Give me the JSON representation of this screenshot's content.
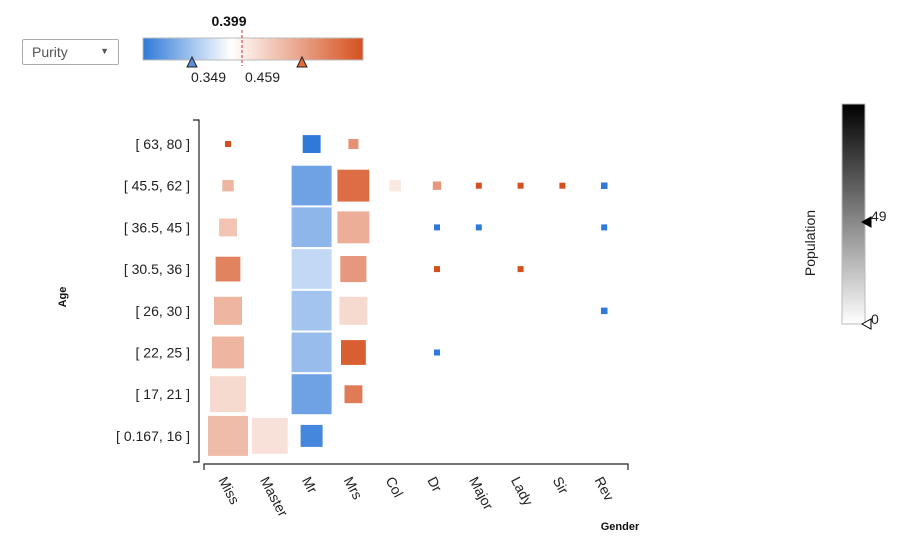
{
  "controls": {
    "metric_selected": "Purity",
    "dropdown_arrow_glyph": "▼"
  },
  "colors": {
    "low": "#2f7ad8",
    "mid": "#ffffff",
    "high": "#d6501f",
    "population_min": "#ffffff",
    "population_max": "#000000"
  },
  "purity_scale": {
    "current": "0.399",
    "low_marker": "0.349",
    "high_marker": "0.459",
    "min": 0.3,
    "max": 0.52,
    "current_value": 0.399,
    "low_value": 0.349,
    "high_value": 0.459
  },
  "population_scale": {
    "label": "Population",
    "max_label": "49",
    "min_label": "0",
    "max_value": 49,
    "min_value": 0
  },
  "chart_data": {
    "type": "heatmap",
    "xlabel": "Gender",
    "ylabel": "Age",
    "x_categories": [
      "Miss",
      "Master",
      "Mr",
      "Mrs",
      "Col",
      "Dr",
      "Major",
      "Lady",
      "Sir",
      "Rev"
    ],
    "y_categories": [
      "[ 63, 80 ]",
      "[ 45.5, 62 ]",
      "[ 36.5, 45 ]",
      "[ 30.5, 36 ]",
      "[ 26, 30 ]",
      "[ 22, 25 ]",
      "[ 17, 21 ]",
      "[ 0.167, 16 ]"
    ],
    "size_encodes": "Population",
    "color_encodes": "Purity",
    "cells": [
      {
        "x": "Miss",
        "y": "[ 63, 80 ]",
        "population": 1,
        "purity": 0.52
      },
      {
        "x": "Mr",
        "y": "[ 63, 80 ]",
        "population": 11,
        "purity": 0.3
      },
      {
        "x": "Mrs",
        "y": "[ 63, 80 ]",
        "population": 4,
        "purity": 0.475
      },
      {
        "x": "Miss",
        "y": "[ 45.5, 62 ]",
        "population": 5,
        "purity": 0.45
      },
      {
        "x": "Mr",
        "y": "[ 45.5, 62 ]",
        "population": 49,
        "purity": 0.33
      },
      {
        "x": "Mrs",
        "y": "[ 45.5, 62 ]",
        "population": 32,
        "purity": 0.5
      },
      {
        "x": "Col",
        "y": "[ 45.5, 62 ]",
        "population": 5,
        "purity": 0.415
      },
      {
        "x": "Dr",
        "y": "[ 45.5, 62 ]",
        "population": 3,
        "purity": 0.47
      },
      {
        "x": "Major",
        "y": "[ 45.5, 62 ]",
        "population": 1,
        "purity": 0.52
      },
      {
        "x": "Lady",
        "y": "[ 45.5, 62 ]",
        "population": 1,
        "purity": 0.52
      },
      {
        "x": "Sir",
        "y": "[ 45.5, 62 ]",
        "population": 1,
        "purity": 0.52
      },
      {
        "x": "Rev",
        "y": "[ 45.5, 62 ]",
        "population": 2,
        "purity": 0.3
      },
      {
        "x": "Miss",
        "y": "[ 36.5, 45 ]",
        "population": 11,
        "purity": 0.44
      },
      {
        "x": "Mr",
        "y": "[ 36.5, 45 ]",
        "population": 49,
        "purity": 0.345
      },
      {
        "x": "Mrs",
        "y": "[ 36.5, 45 ]",
        "population": 32,
        "purity": 0.455
      },
      {
        "x": "Dr",
        "y": "[ 36.5, 45 ]",
        "population": 1,
        "purity": 0.3
      },
      {
        "x": "Major",
        "y": "[ 36.5, 45 ]",
        "population": 1,
        "purity": 0.3
      },
      {
        "x": "Rev",
        "y": "[ 36.5, 45 ]",
        "population": 1,
        "purity": 0.3
      },
      {
        "x": "Miss",
        "y": "[ 30.5, 36 ]",
        "population": 20,
        "purity": 0.485
      },
      {
        "x": "Mr",
        "y": "[ 30.5, 36 ]",
        "population": 49,
        "purity": 0.37
      },
      {
        "x": "Mrs",
        "y": "[ 30.5, 36 ]",
        "population": 22,
        "purity": 0.47
      },
      {
        "x": "Dr",
        "y": "[ 30.5, 36 ]",
        "population": 1,
        "purity": 0.52
      },
      {
        "x": "Lady",
        "y": "[ 30.5, 36 ]",
        "population": 1,
        "purity": 0.52
      },
      {
        "x": "Miss",
        "y": "[ 26, 30 ]",
        "population": 25,
        "purity": 0.45
      },
      {
        "x": "Mr",
        "y": "[ 26, 30 ]",
        "population": 49,
        "purity": 0.355
      },
      {
        "x": "Mrs",
        "y": "[ 26, 30 ]",
        "population": 25,
        "purity": 0.425
      },
      {
        "x": "Rev",
        "y": "[ 26, 30 ]",
        "population": 2,
        "purity": 0.3
      },
      {
        "x": "Miss",
        "y": "[ 22, 25 ]",
        "population": 32,
        "purity": 0.45
      },
      {
        "x": "Mr",
        "y": "[ 22, 25 ]",
        "population": 49,
        "purity": 0.35
      },
      {
        "x": "Mrs",
        "y": "[ 22, 25 ]",
        "population": 20,
        "purity": 0.51
      },
      {
        "x": "Dr",
        "y": "[ 22, 25 ]",
        "population": 1,
        "purity": 0.3
      },
      {
        "x": "Miss",
        "y": "[ 17, 21 ]",
        "population": 40,
        "purity": 0.425
      },
      {
        "x": "Mr",
        "y": "[ 17, 21 ]",
        "population": 49,
        "purity": 0.33
      },
      {
        "x": "Mrs",
        "y": "[ 17, 21 ]",
        "population": 11,
        "purity": 0.49
      },
      {
        "x": "Miss",
        "y": "[ 0.167, 16 ]",
        "population": 49,
        "purity": 0.445
      },
      {
        "x": "Master",
        "y": "[ 0.167, 16 ]",
        "population": 40,
        "purity": 0.42
      },
      {
        "x": "Mr",
        "y": "[ 0.167, 16 ]",
        "population": 16,
        "purity": 0.31
      },
      {
        "x": "Mrs",
        "y": "[ 0.167, 16 ]",
        "population": 4,
        "purity": 0.399
      }
    ]
  }
}
